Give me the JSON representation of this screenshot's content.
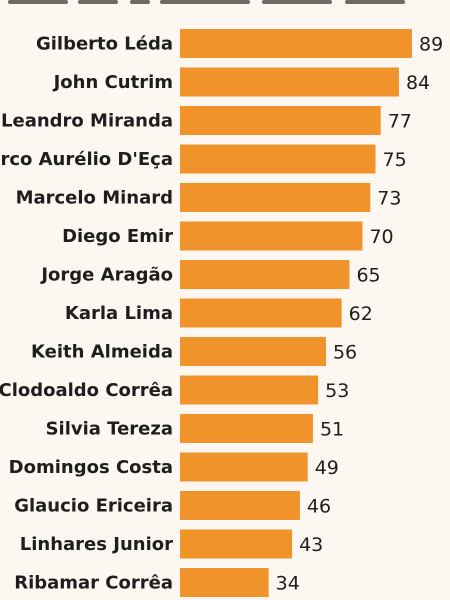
{
  "colors": {
    "background": "#fcf7f1",
    "bar": "#f0932b",
    "text": "#1e1e1e"
  },
  "chart_data": {
    "type": "bar",
    "orientation": "horizontal",
    "categories": [
      "Gilberto Léda",
      "John Cutrim",
      "Leandro Miranda",
      "Marco Aurélio D'Eça",
      "Marcelo Minard",
      "Diego Emir",
      "Jorge Aragão",
      "Karla Lima",
      "Keith Almeida",
      "Clodoaldo Corrêa",
      "Silvia Tereza",
      "Domingos Costa",
      "Glaucio Ericeira",
      "Linhares Junior",
      "Ribamar Corrêa"
    ],
    "values": [
      89,
      84,
      77,
      75,
      73,
      70,
      65,
      62,
      56,
      53,
      51,
      49,
      46,
      43,
      34
    ],
    "title": "",
    "xlabel": "",
    "ylabel": "",
    "xlim": [
      0,
      89
    ],
    "grid": false,
    "legend": "none"
  }
}
